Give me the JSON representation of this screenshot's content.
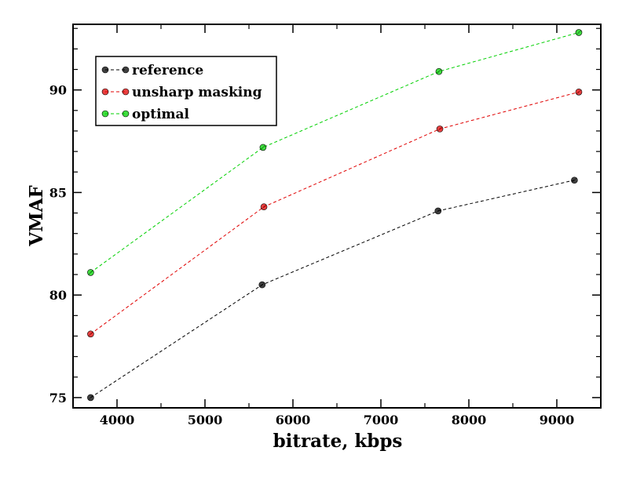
{
  "chart_data": {
    "type": "line",
    "title": "",
    "xlabel": "bitrate, kbps",
    "ylabel": "VMAF",
    "xlim": [
      3500,
      9500
    ],
    "ylim": [
      74.5,
      93.2
    ],
    "xticks": [
      4000,
      5000,
      6000,
      7000,
      8000,
      9000
    ],
    "yticks": [
      75,
      80,
      85,
      90
    ],
    "grid": false,
    "legend_position": "top-left",
    "series": [
      {
        "name": "reference",
        "color": "#000000",
        "points": [
          [
            3700,
            75.0
          ],
          [
            5650,
            80.5
          ],
          [
            7650,
            84.1
          ],
          [
            9200,
            85.6
          ]
        ]
      },
      {
        "name": "unsharp masking",
        "color": "#e00000",
        "points": [
          [
            3700,
            78.1
          ],
          [
            5670,
            84.3
          ],
          [
            7670,
            88.1
          ],
          [
            9250,
            89.9
          ]
        ]
      },
      {
        "name": "optimal",
        "color": "#00d000",
        "points": [
          [
            3700,
            81.1
          ],
          [
            5660,
            87.2
          ],
          [
            7660,
            90.9
          ],
          [
            9250,
            92.8
          ]
        ]
      }
    ]
  }
}
